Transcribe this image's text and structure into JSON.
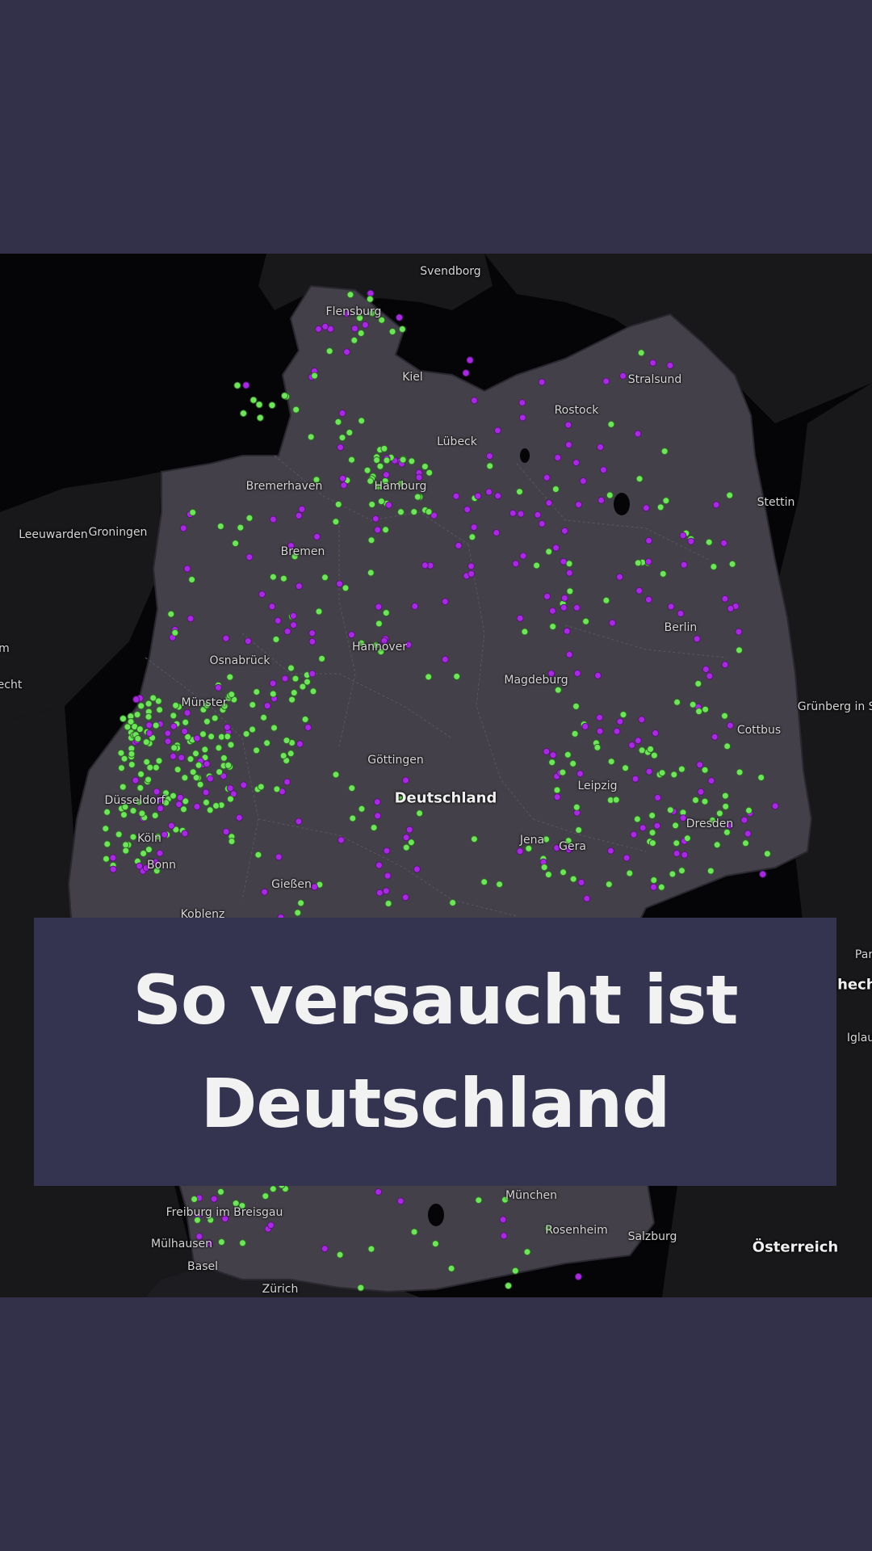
{
  "title": "So versaucht ist Deutschland",
  "colors": {
    "background": "#323149",
    "map_land": "#444049",
    "map_neighbors": "#18181b",
    "sea": "#050507",
    "marker_green": "#6fe45c",
    "marker_purple": "#a729e0"
  },
  "map": {
    "country_label": "Deutschland",
    "neighbor_labels": {
      "oesterreich": "Österreich",
      "gruenberg": "Grünberg in Sc",
      "par": "Par",
      "chech": "chech",
      "iglau": "Iglau",
      "echt": "echt",
      "m": "m"
    },
    "cities": {
      "svendborg": "Svendborg",
      "flensburg": "Flensburg",
      "kiel": "Kiel",
      "stralsund": "Stralsund",
      "rostock": "Rostock",
      "luebeck": "Lübeck",
      "bremerhaven": "Bremerhaven",
      "hamburg": "Hamburg",
      "stettin": "Stettin",
      "leeuwarden": "Leeuwarden",
      "groningen": "Groningen",
      "bremen": "Bremen",
      "berlin": "Berlin",
      "hannover": "Hannover",
      "osnabrueck": "Osnabrück",
      "magdeburg": "Magdeburg",
      "muenster": "Münster",
      "cottbus": "Cottbus",
      "goettingen": "Göttingen",
      "leipzig": "Leipzig",
      "duesseldorf": "Düsseldorf",
      "dresden": "Dresden",
      "koeln": "Köln",
      "jena": "Jena",
      "gera": "Gera",
      "bonn": "Bonn",
      "giessen": "Gießen",
      "koblenz": "Koblenz",
      "muenchen": "München",
      "freiburg": "Freiburg im Breisgau",
      "rosenheim": "Rosenheim",
      "salzburg": "Salzburg",
      "muelhausen": "Mülhausen",
      "basel": "Basel",
      "zuerich": "Zürich"
    }
  }
}
